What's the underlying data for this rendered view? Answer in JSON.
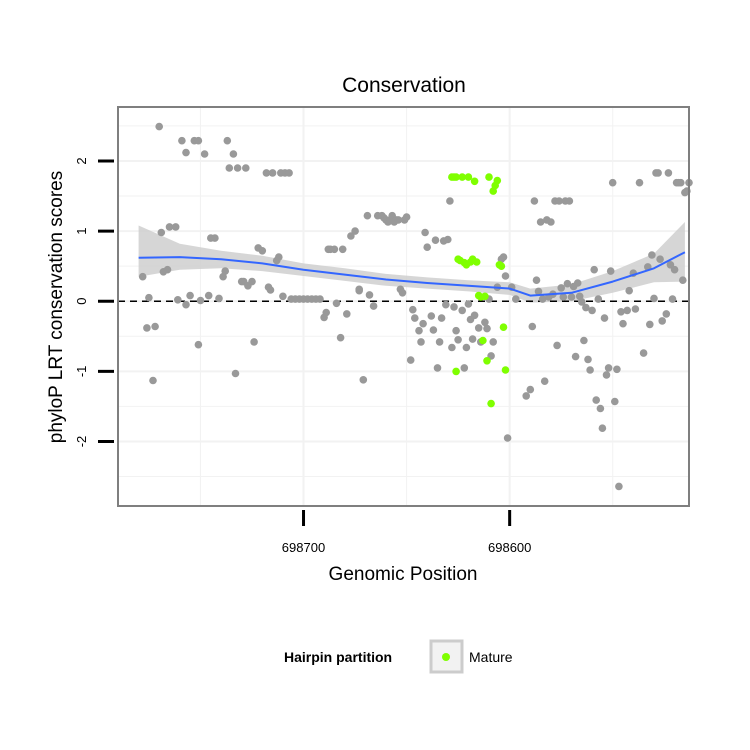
{
  "chart_data": {
    "type": "scatter",
    "title": "Conservation",
    "xlabel": "Genomic Position",
    "ylabel": "phyloP LRT conservation scores",
    "x_reversed": true,
    "xlim": [
      698790,
      698513
    ],
    "ylim": [
      -2.92,
      2.77
    ],
    "x_ticks": [
      698700,
      698600
    ],
    "x_tick_labels": [
      "698700",
      "698600"
    ],
    "y_ticks": [
      2,
      1,
      0,
      -1,
      -2
    ],
    "y_tick_labels": [
      "2",
      "1",
      "0",
      "-1",
      "-2"
    ],
    "reference_line": {
      "y": 0,
      "style": "dashed"
    },
    "grid": true,
    "legend": {
      "title": "Hairpin partition",
      "entries": [
        "Mature"
      ],
      "placement": "bottom"
    },
    "colors": {
      "other": "#999999",
      "mature": "#7fff00",
      "smooth": "#3366ff",
      "band": "#cccccc",
      "panel_border": "#7f7f7f",
      "grid": "#f2f2f2"
    },
    "series": [
      {
        "name": "",
        "points": [
          [
            698778,
            0.35
          ],
          [
            698776,
            -0.38
          ],
          [
            698775,
            0.05
          ],
          [
            698773,
            -1.13
          ],
          [
            698772,
            -0.36
          ],
          [
            698770,
            2.49
          ],
          [
            698769,
            0.98
          ],
          [
            698768,
            0.42
          ],
          [
            698766,
            0.45
          ],
          [
            698765,
            1.06
          ],
          [
            698762,
            1.06
          ],
          [
            698761,
            0.02
          ],
          [
            698759,
            2.29
          ],
          [
            698757,
            -0.05
          ],
          [
            698757,
            2.12
          ],
          [
            698755,
            0.08
          ],
          [
            698753,
            2.29
          ],
          [
            698751,
            2.29
          ],
          [
            698750,
            0.01
          ],
          [
            698751,
            -0.62
          ],
          [
            698748,
            2.1
          ],
          [
            698746,
            0.08
          ],
          [
            698745,
            0.9
          ],
          [
            698743,
            0.9
          ],
          [
            698741,
            0.04
          ],
          [
            698739,
            0.35
          ],
          [
            698738,
            0.43
          ],
          [
            698737,
            2.29
          ],
          [
            698736,
            1.9
          ],
          [
            698734,
            2.1
          ],
          [
            698733,
            -1.03
          ],
          [
            698732,
            1.9
          ],
          [
            698730,
            0.28
          ],
          [
            698729,
            0.28
          ],
          [
            698728,
            1.9
          ],
          [
            698727,
            0.22
          ],
          [
            698725,
            0.28
          ],
          [
            698724,
            -0.58
          ],
          [
            698722,
            0.76
          ],
          [
            698720,
            0.72
          ],
          [
            698717,
            0.2
          ],
          [
            698718,
            1.83
          ],
          [
            698716,
            0.16
          ],
          [
            698715,
            1.83
          ],
          [
            698713,
            0.58
          ],
          [
            698712,
            0.63
          ],
          [
            698711,
            1.83
          ],
          [
            698710,
            0.07
          ],
          [
            698709,
            1.83
          ],
          [
            698707,
            1.83
          ],
          [
            698706,
            0.03
          ],
          [
            698704,
            0.03
          ],
          [
            698702,
            0.03
          ],
          [
            698700,
            0.03
          ],
          [
            698698,
            0.03
          ],
          [
            698696,
            0.03
          ],
          [
            698694,
            0.03
          ],
          [
            698692,
            0.03
          ],
          [
            698690,
            -0.23
          ],
          [
            698689,
            -0.16
          ],
          [
            698688,
            0.74
          ],
          [
            698687,
            0.74
          ],
          [
            698685,
            0.74
          ],
          [
            698684,
            -0.03
          ],
          [
            698682,
            -0.52
          ],
          [
            698681,
            0.74
          ],
          [
            698679,
            -0.18
          ],
          [
            698677,
            0.93
          ],
          [
            698675,
            1.0
          ],
          [
            698673,
            0.17
          ],
          [
            698673,
            0.15
          ],
          [
            698671,
            -1.12
          ],
          [
            698669,
            1.22
          ],
          [
            698668,
            0.09
          ],
          [
            698666,
            -0.07
          ],
          [
            698664,
            1.22
          ],
          [
            698662,
            1.22
          ],
          [
            698661,
            1.19
          ],
          [
            698660,
            1.16
          ],
          [
            698659,
            1.13
          ],
          [
            698658,
            1.16
          ],
          [
            698657,
            1.22
          ],
          [
            698656,
            1.13
          ],
          [
            698655,
            1.16
          ],
          [
            698654,
            1.16
          ],
          [
            698653,
            0.17
          ],
          [
            698652,
            0.12
          ],
          [
            698651,
            1.16
          ],
          [
            698650,
            1.2
          ],
          [
            698648,
            -0.84
          ],
          [
            698647,
            -0.12
          ],
          [
            698646,
            -0.24
          ],
          [
            698644,
            -0.42
          ],
          [
            698643,
            -0.58
          ],
          [
            698642,
            -0.32
          ],
          [
            698641,
            0.98
          ],
          [
            698640,
            0.77
          ],
          [
            698638,
            -0.21
          ],
          [
            698637,
            -0.41
          ],
          [
            698636,
            0.87
          ],
          [
            698635,
            -0.95
          ],
          [
            698634,
            -0.58
          ],
          [
            698633,
            -0.24
          ],
          [
            698632,
            0.86
          ],
          [
            698631,
            -0.05
          ],
          [
            698630,
            0.88
          ],
          [
            698629,
            1.43
          ],
          [
            698628,
            -0.66
          ],
          [
            698627,
            -0.08
          ],
          [
            698626,
            -0.42
          ],
          [
            698625,
            -0.55
          ],
          [
            698623,
            -0.13
          ],
          [
            698622,
            -0.95
          ],
          [
            698621,
            -0.66
          ],
          [
            698620,
            -0.04
          ],
          [
            698619,
            -0.26
          ],
          [
            698618,
            -0.54
          ],
          [
            698617,
            -0.2
          ],
          [
            698615,
            -0.38
          ],
          [
            698614,
            -0.58
          ],
          [
            698612,
            -0.3
          ],
          [
            698611,
            -0.39
          ],
          [
            698610,
            0.03
          ],
          [
            698609,
            -0.78
          ],
          [
            698608,
            -0.58
          ],
          [
            698606,
            0.2
          ],
          [
            698604,
            0.6
          ],
          [
            698603,
            0.63
          ],
          [
            698602,
            0.36
          ],
          [
            698601,
            -1.95
          ],
          [
            698599,
            0.2
          ],
          [
            698597,
            0.03
          ],
          [
            698592,
            -1.35
          ],
          [
            698590,
            -1.26
          ],
          [
            698589,
            -0.36
          ],
          [
            698588,
            1.43
          ],
          [
            698587,
            0.3
          ],
          [
            698586,
            0.14
          ],
          [
            698585,
            1.13
          ],
          [
            698584,
            0.03
          ],
          [
            698583,
            -1.14
          ],
          [
            698582,
            1.16
          ],
          [
            698581,
            0.06
          ],
          [
            698580,
            1.13
          ],
          [
            698579,
            0.1
          ],
          [
            698578,
            1.43
          ],
          [
            698577,
            -0.63
          ],
          [
            698576,
            1.43
          ],
          [
            698575,
            0.19
          ],
          [
            698574,
            0.06
          ],
          [
            698573,
            1.43
          ],
          [
            698572,
            0.25
          ],
          [
            698571,
            1.43
          ],
          [
            698570,
            0.06
          ],
          [
            698569,
            0.21
          ],
          [
            698568,
            -0.79
          ],
          [
            698567,
            0.26
          ],
          [
            698566,
            0.07
          ],
          [
            698565,
            -0.01
          ],
          [
            698564,
            -0.56
          ],
          [
            698563,
            -0.09
          ],
          [
            698562,
            -0.83
          ],
          [
            698561,
            -0.98
          ],
          [
            698560,
            -0.13
          ],
          [
            698559,
            0.45
          ],
          [
            698558,
            -1.41
          ],
          [
            698557,
            0.03
          ],
          [
            698556,
            -1.53
          ],
          [
            698555,
            -1.81
          ],
          [
            698554,
            -0.24
          ],
          [
            698553,
            -1.05
          ],
          [
            698552,
            -0.95
          ],
          [
            698551,
            0.43
          ],
          [
            698550,
            1.69
          ],
          [
            698549,
            -1.43
          ],
          [
            698548,
            -0.97
          ],
          [
            698547,
            -2.64
          ],
          [
            698546,
            -0.15
          ],
          [
            698545,
            -0.32
          ],
          [
            698543,
            -0.13
          ],
          [
            698542,
            0.15
          ],
          [
            698540,
            0.4
          ],
          [
            698539,
            -0.11
          ],
          [
            698537,
            1.69
          ],
          [
            698535,
            -0.74
          ],
          [
            698533,
            0.49
          ],
          [
            698532,
            -0.33
          ],
          [
            698531,
            0.66
          ],
          [
            698530,
            0.04
          ],
          [
            698529,
            1.83
          ],
          [
            698528,
            1.83
          ],
          [
            698527,
            0.6
          ],
          [
            698526,
            -0.28
          ],
          [
            698524,
            -0.18
          ],
          [
            698523,
            1.83
          ],
          [
            698522,
            0.52
          ],
          [
            698521,
            0.03
          ],
          [
            698520,
            0.45
          ],
          [
            698519,
            1.69
          ],
          [
            698518,
            1.69
          ],
          [
            698517,
            1.69
          ],
          [
            698516,
            0.3
          ],
          [
            698515,
            1.55
          ],
          [
            698514,
            1.57
          ],
          [
            698513,
            1.69
          ]
        ]
      },
      {
        "name": "Mature",
        "points": [
          [
            698628,
            1.77
          ],
          [
            698627,
            1.77
          ],
          [
            698626,
            1.77
          ],
          [
            698625,
            0.6
          ],
          [
            698624,
            0.58
          ],
          [
            698623,
            1.77
          ],
          [
            698622,
            0.55
          ],
          [
            698621,
            0.52
          ],
          [
            698620,
            1.77
          ],
          [
            698619,
            0.56
          ],
          [
            698618,
            0.6
          ],
          [
            698617,
            1.71
          ],
          [
            698616,
            0.56
          ],
          [
            698615,
            0.08
          ],
          [
            698614,
            0.06
          ],
          [
            698613,
            -0.56
          ],
          [
            698612,
            0.07
          ],
          [
            698611,
            -0.85
          ],
          [
            698610,
            1.77
          ],
          [
            698609,
            -1.46
          ],
          [
            698608,
            1.57
          ],
          [
            698607,
            1.65
          ],
          [
            698606,
            1.72
          ],
          [
            698605,
            0.52
          ],
          [
            698604,
            0.5
          ],
          [
            698603,
            -0.37
          ],
          [
            698602,
            -0.98
          ],
          [
            698626,
            -1.0
          ]
        ]
      }
    ],
    "smooth_trend": {
      "x": [
        698780,
        698760,
        698740,
        698720,
        698700,
        698680,
        698660,
        698640,
        698620,
        698600,
        698590,
        698570,
        698550,
        698530,
        698515
      ],
      "y": [
        0.62,
        0.63,
        0.6,
        0.54,
        0.45,
        0.38,
        0.31,
        0.26,
        0.22,
        0.18,
        0.08,
        0.12,
        0.28,
        0.47,
        0.7
      ],
      "lower": [
        0.35,
        0.45,
        0.47,
        0.43,
        0.36,
        0.29,
        0.22,
        0.18,
        0.14,
        0.09,
        -0.02,
        0.0,
        0.12,
        0.27,
        0.28
      ],
      "upper": [
        1.08,
        0.82,
        0.72,
        0.65,
        0.54,
        0.47,
        0.39,
        0.34,
        0.3,
        0.27,
        0.18,
        0.24,
        0.43,
        0.68,
        1.13
      ]
    }
  }
}
